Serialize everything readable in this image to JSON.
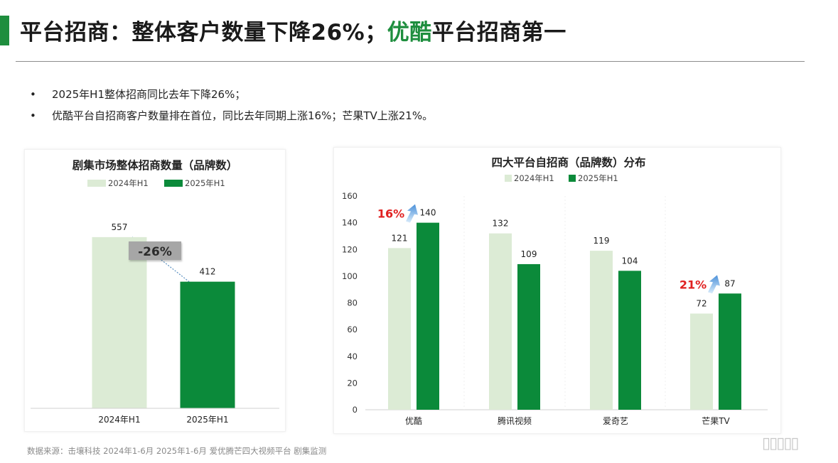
{
  "page": {
    "title_part1": "平台招商：整体客户数量下降26%；",
    "title_highlight": "优酷",
    "title_part2": "平台招商第一",
    "bullets": [
      "2025年H1整体招商同比去年下降26%；",
      "优酷平台自招商客户数量排在首位，同比去年同期上涨16%；芒果TV上涨21%。"
    ],
    "bullet_symbol": "•",
    "source": "数据来源：击壤科技 2024年1-6月 2025年1-6月 爱优腾芒四大视频平台 剧集监测",
    "watermark": "▯▯▯▯▯",
    "colors": {
      "accent": "#1e8e3e",
      "light_series": "#dcebd5",
      "dark_series": "#0b8a3a",
      "highlight_red": "#e02020"
    }
  },
  "chart_data": [
    {
      "type": "bar",
      "title": "剧集市场整体招商数量（品牌数）",
      "categories": [
        "2024年H1",
        "2025年H1"
      ],
      "series": [
        {
          "name": "2024年H1",
          "values": [
            557,
            null
          ]
        },
        {
          "name": "2025年H1",
          "values": [
            null,
            412
          ]
        }
      ],
      "legend": "top",
      "grid": false,
      "ylim": [
        0,
        700
      ],
      "annotations": [
        {
          "text": "-26%",
          "type": "change-label"
        }
      ]
    },
    {
      "type": "bar",
      "title": "四大平台自招商（品牌数）分布",
      "categories": [
        "优酷",
        "腾讯视频",
        "爱奇艺",
        "芒果TV"
      ],
      "series": [
        {
          "name": "2024年H1",
          "values": [
            121,
            132,
            119,
            72
          ]
        },
        {
          "name": "2025年H1",
          "values": [
            140,
            109,
            104,
            87
          ]
        }
      ],
      "yticks": [
        0,
        20,
        40,
        60,
        80,
        100,
        120,
        140,
        160
      ],
      "ylim": [
        0,
        160
      ],
      "legend": "top",
      "grid": false,
      "annotations": [
        {
          "text": "16%",
          "category": "优酷",
          "arrow": "up"
        },
        {
          "text": "21%",
          "category": "芒果TV",
          "arrow": "up"
        }
      ]
    }
  ]
}
